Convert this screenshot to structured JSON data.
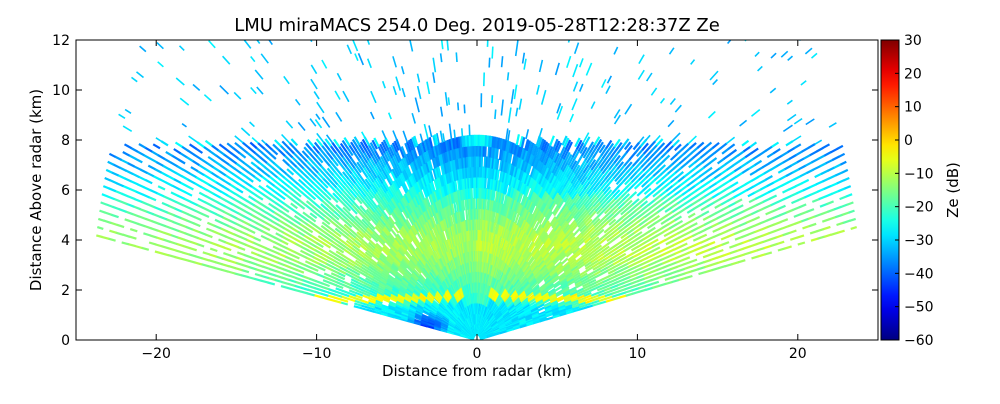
{
  "chart_data": {
    "type": "heatmap",
    "title": "LMU miraMACS 254.0 Deg. 2019-05-28T12:28:37Z  Ze",
    "xlabel": "Distance from radar (km)",
    "ylabel": "Distance Above radar  (km)",
    "xlim": [
      -25,
      25
    ],
    "ylim": [
      0,
      12
    ],
    "xticks": [
      -20,
      -10,
      0,
      10,
      20
    ],
    "xtick_labels": [
      "−20",
      "−10",
      "0",
      "10",
      "20"
    ],
    "yticks": [
      0,
      2,
      4,
      6,
      8,
      10,
      12
    ],
    "ytick_labels": [
      "0",
      "2",
      "4",
      "6",
      "8",
      "10",
      "12"
    ],
    "grid": false,
    "colorbar": {
      "label": "Ze (dB)",
      "colormap": "jet",
      "range": [
        -60,
        30
      ],
      "ticks": [
        30,
        20,
        10,
        0,
        -10,
        -20,
        -30,
        -40,
        -50,
        -60
      ],
      "tick_labels": [
        "30",
        "20",
        "10",
        "0",
        "−10",
        "−20",
        "−30",
        "−40",
        "−50",
        "−60"
      ]
    },
    "scan": {
      "elevation_min_deg": 10,
      "elevation_max_deg": 170,
      "max_range_km": 24.1
    },
    "features": [
      {
        "name": "background noise",
        "ze_db": -28
      },
      {
        "name": "cloud layer",
        "height_km": [
          2.5,
          6.5
        ],
        "ze_db": [
          -25,
          -12
        ]
      },
      {
        "name": "cloud top",
        "height_km": 7.5,
        "ze_db": -38
      },
      {
        "name": "melting layer bright band",
        "height_km": 1.6,
        "ze_db": -5
      },
      {
        "name": "near-radar minimum",
        "x_km": -3,
        "height_km": 0.5,
        "ze_db": -45
      }
    ]
  }
}
